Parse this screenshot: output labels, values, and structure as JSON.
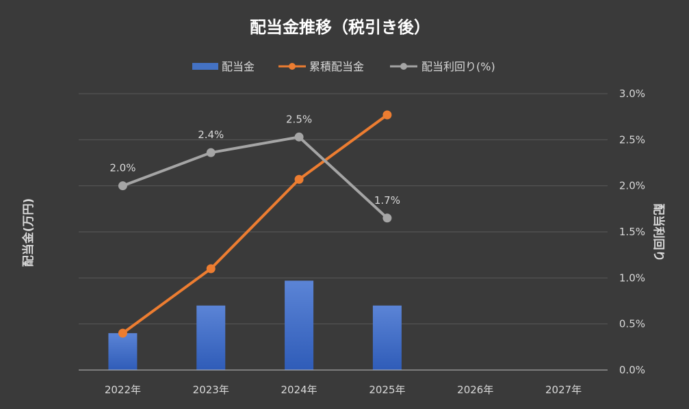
{
  "chart_data": {
    "title": "配当金推移（税引き後）",
    "type": "bar+line",
    "categories": [
      "2022年",
      "2023年",
      "2024年",
      "2025年",
      "2026年",
      "2027年"
    ],
    "series": [
      {
        "name": "配当金",
        "type": "bar",
        "axis": "left",
        "color": "#4472c4",
        "values": [
          0.4,
          0.7,
          0.97,
          0.7,
          null,
          null
        ]
      },
      {
        "name": "累積配当金",
        "type": "line",
        "axis": "left",
        "color": "#ed7d31",
        "values": [
          0.4,
          1.1,
          2.07,
          2.77,
          null,
          null
        ]
      },
      {
        "name": "配当利回り(%)",
        "type": "line",
        "axis": "right",
        "color": "#a5a5a5",
        "values": [
          2.0,
          2.36,
          2.53,
          1.65,
          null,
          null
        ],
        "data_labels": [
          "2.0%",
          "2.4%",
          "2.5%",
          "1.7%",
          "",
          ""
        ]
      }
    ],
    "ylabel": "配当金(万円)",
    "y2label": "配当利回り",
    "ylim": [
      0,
      3
    ],
    "y2lim": [
      0,
      3
    ],
    "y2ticks": [
      "0.0%",
      "0.5%",
      "1.0%",
      "1.5%",
      "2.0%",
      "2.5%",
      "3.0%"
    ],
    "legend": "top",
    "grid": true
  }
}
